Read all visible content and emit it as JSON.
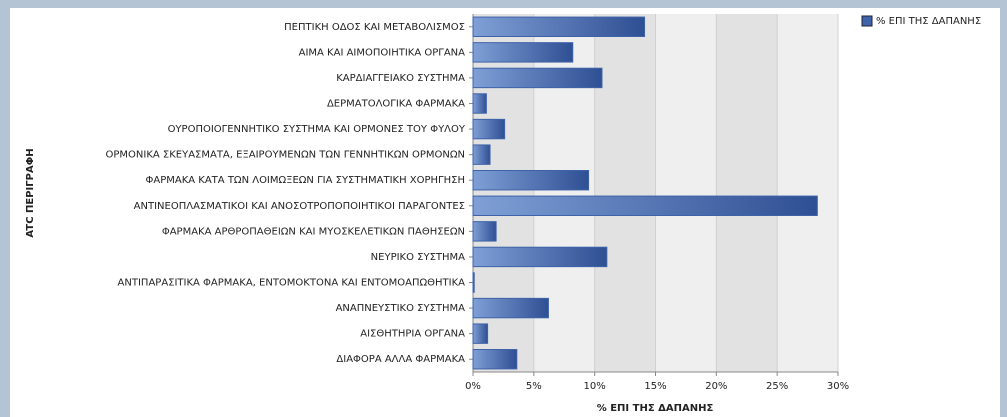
{
  "chart_data": {
    "type": "bar",
    "orientation": "horizontal",
    "categories": [
      "ΠΕΠΤΙΚΗ ΟΔΟΣ ΚΑΙ ΜΕΤΑΒΟΛΙΣΜΟΣ",
      "ΑΙΜΑ ΚΑΙ ΑΙΜΟΠΟΙΗΤΙΚΑ ΟΡΓΑΝΑ",
      "ΚΑΡΔΙΑΓΓΕΙΑΚΟ ΣΥΣΤΗΜΑ",
      "ΔΕΡΜΑΤΟΛΟΓΙΚΑ ΦΑΡΜΑΚΑ",
      "ΟΥΡΟΠΟΙΟΓΕΝΝΗΤΙΚΟ ΣΥΣΤΗΜΑ ΚΑΙ ΟΡΜΟΝΕΣ ΤΟΥ ΦΥΛΟΥ",
      "ΟΡΜΟΝΙΚΑ ΣΚΕΥΑΣΜΑΤΑ, ΕΞΑΙΡΟΥΜΕΝΩΝ ΤΩΝ ΓΕΝΝΗΤΙΚΩΝ ΟΡΜΟΝΩΝ",
      "ΦΑΡΜΑΚΑ ΚΑΤΑ ΤΩΝ ΛΟΙΜΩΞΕΩΝ ΓΙΑ ΣΥΣΤΗΜΑΤΙΚΗ ΧΟΡΗΓΗΣΗ",
      "ΑΝΤΙΝΕΟΠΛΑΣΜΑΤΙΚΟΙ ΚΑΙ ΑΝΟΣΟΤΡΟΠΟΠΟΙΗΤΙΚΟΙ ΠΑΡΑΓΟΝΤΕΣ",
      "ΦΑΡΜΑΚΑ ΑΡΘΡΟΠΑΘΕΙΩΝ ΚΑΙ ΜΥΟΣΚΕΛΕΤΙΚΩΝ ΠΑΘΗΣΕΩΝ",
      "ΝΕΥΡΙΚΟ ΣΥΣΤΗΜΑ",
      "ΑΝΤΙΠΑΡΑΣΙΤΙΚΑ ΦΑΡΜΑΚΑ, ΕΝΤΟΜΟΚΤΟΝΑ ΚΑΙ ΕΝΤΟΜΟΑΠΩΘΗΤΙΚΑ",
      "ΑΝΑΠΝΕΥΣΤΙΚΟ ΣΥΣΤΗΜΑ",
      "ΑΙΣΘΗΤΗΡΙΑ ΟΡΓΑΝΑ",
      "ΔΙΑΦΟΡΑ ΑΛΛΑ ΦΑΡΜΑΚΑ"
    ],
    "series": [
      {
        "name": "% ΕΠΙ ΤΗΣ ΔΑΠΑΝΗΣ",
        "color": "#3f63a8",
        "values": [
          14.1,
          8.2,
          10.6,
          1.1,
          2.6,
          1.4,
          9.5,
          28.3,
          1.9,
          11.0,
          0.1,
          6.2,
          1.2,
          3.6
        ]
      }
    ],
    "x_label": "% ΕΠΙ ΤΗΣ ΔΑΠΑΝΗΣ",
    "y_label": "ATC ΠΕΡΙΓΡΑΦΗ",
    "xlim": [
      0,
      30
    ],
    "xticks": [
      {
        "value": 0,
        "label": "0%"
      },
      {
        "value": 5,
        "label": "5%"
      },
      {
        "value": 10,
        "label": "10%"
      },
      {
        "value": 15,
        "label": "15%"
      },
      {
        "value": 20,
        "label": "20%"
      },
      {
        "value": 25,
        "label": "25%"
      },
      {
        "value": 30,
        "label": "30%"
      }
    ],
    "grid": true,
    "legend": "top-right"
  }
}
